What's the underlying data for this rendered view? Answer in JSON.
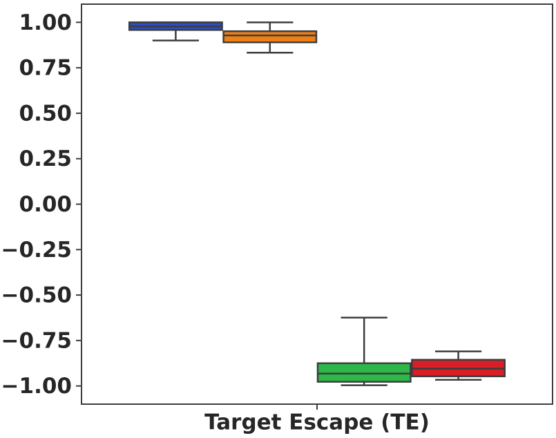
{
  "chart_data": {
    "type": "box",
    "categories": [
      "Target Escape (TE)"
    ],
    "series": [
      {
        "color": "#2b4ec4",
        "values": [
          {
            "min": 0.9,
            "q1": 0.958,
            "median": 0.977,
            "q3": 1.0,
            "max": 1.0
          }
        ]
      },
      {
        "color": "#f07f14",
        "values": [
          {
            "min": 0.833,
            "q1": 0.89,
            "median": 0.928,
            "q3": 0.951,
            "max": 1.0
          }
        ]
      },
      {
        "color": "#2eb84a",
        "values": [
          {
            "min": -0.996,
            "q1": -0.977,
            "median": -0.932,
            "q3": -0.875,
            "max": -0.624
          }
        ]
      },
      {
        "color": "#d81e26",
        "values": [
          {
            "min": -0.966,
            "q1": -0.947,
            "median": -0.905,
            "q3": -0.856,
            "max": -0.81
          }
        ]
      }
    ],
    "ylim": [
      -1.1,
      1.1
    ],
    "yticks": [
      {
        "value": 1.0,
        "label": "1.00"
      },
      {
        "value": 0.75,
        "label": "0.75"
      },
      {
        "value": 0.5,
        "label": "0.50"
      },
      {
        "value": 0.25,
        "label": "0.25"
      },
      {
        "value": 0.0,
        "label": "0.00"
      },
      {
        "value": -0.25,
        "label": "−0.25"
      },
      {
        "value": -0.5,
        "label": "−0.50"
      },
      {
        "value": -0.75,
        "label": "−0.75"
      },
      {
        "value": -1.0,
        "label": "−1.00"
      }
    ],
    "grid": false
  }
}
